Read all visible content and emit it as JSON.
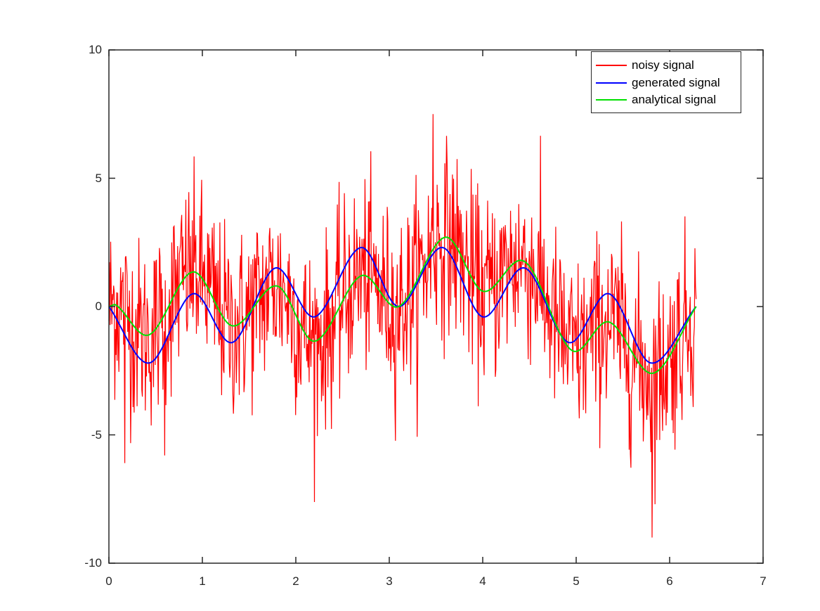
{
  "chart_data": {
    "type": "line",
    "title": "",
    "xlabel": "",
    "ylabel": "",
    "xlim": [
      0,
      7
    ],
    "ylim": [
      -10,
      10
    ],
    "grid": false,
    "legend_position": "northeast",
    "x_ticks": [
      "0",
      "1",
      "2",
      "3",
      "4",
      "5",
      "6",
      "7"
    ],
    "y_ticks": [
      "10",
      "5",
      "0",
      "-5",
      "-10"
    ],
    "x_range_of_data": [
      0,
      6.2832
    ],
    "series": [
      {
        "name": "noisy signal",
        "color": "#ff0000",
        "description": "analytical signal plus random noise (std ~1.8), min ~-9.0 at x~5.81, max ~7.5 at x~3.47",
        "noise_std": 1.8,
        "extremes": [
          {
            "x": 5.81,
            "y": -9.0
          },
          {
            "x": 3.47,
            "y": 7.5
          },
          {
            "x": 0.17,
            "y": -6.1
          },
          {
            "x": 0.6,
            "y": -5.8
          }
        ]
      },
      {
        "name": "generated signal",
        "color": "#0000ff",
        "points": [
          [
            0,
            0
          ],
          [
            0.43,
            -2.2
          ],
          [
            0.9,
            0.5
          ],
          [
            1.32,
            -1.4
          ],
          [
            1.78,
            1.5
          ],
          [
            2.2,
            -0.4
          ],
          [
            2.7,
            2.3
          ],
          [
            3.1,
            0.0
          ],
          [
            3.57,
            2.3
          ],
          [
            4.0,
            -0.4
          ],
          [
            4.45,
            1.5
          ],
          [
            4.92,
            -1.4
          ],
          [
            5.35,
            0.5
          ],
          [
            5.8,
            -2.2
          ],
          [
            6.2832,
            0
          ]
        ]
      },
      {
        "name": "analytical signal",
        "color": "#00e000",
        "points": [
          [
            0,
            0
          ],
          [
            0.08,
            0.05
          ],
          [
            0.43,
            -1.1
          ],
          [
            0.9,
            1.35
          ],
          [
            1.32,
            -0.75
          ],
          [
            1.8,
            0.8
          ],
          [
            2.2,
            -1.35
          ],
          [
            2.7,
            1.2
          ],
          [
            3.1,
            0.0
          ],
          [
            3.6,
            2.7
          ],
          [
            4.0,
            0.6
          ],
          [
            4.45,
            1.75
          ],
          [
            4.95,
            -1.7
          ],
          [
            5.35,
            -0.6
          ],
          [
            5.82,
            -2.6
          ],
          [
            6.2832,
            0
          ]
        ]
      }
    ]
  },
  "legend": {
    "items": [
      {
        "label": "noisy signal",
        "color": "#ff0000"
      },
      {
        "label": "generated signal",
        "color": "#0000ff"
      },
      {
        "label": "analytical signal",
        "color": "#00e000"
      }
    ]
  }
}
